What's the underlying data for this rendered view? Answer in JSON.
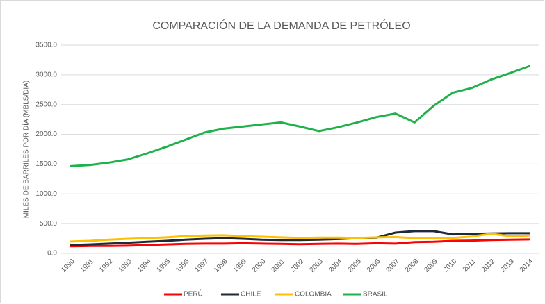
{
  "chart_data": {
    "type": "line",
    "title": "COMPARACIÓN DE LA DEMANDA DE PETRÓLEO",
    "y_label": "MILES DE BARRILES POR DÍA (MBLS/DIA)",
    "categories": [
      "1990",
      "1991",
      "1992",
      "1993",
      "1994",
      "1995",
      "1996",
      "1997",
      "1998",
      "1999",
      "2000",
      "2001",
      "2002",
      "2003",
      "2004",
      "2005",
      "2006",
      "2007",
      "2008",
      "2009",
      "2010",
      "2011",
      "2012",
      "2013",
      "2014"
    ],
    "series": [
      {
        "name": "PERÚ",
        "color": "#ff0000",
        "values": [
          120,
          125,
          125,
          130,
          140,
          150,
          160,
          165,
          165,
          170,
          165,
          160,
          155,
          160,
          165,
          160,
          170,
          165,
          190,
          195,
          210,
          215,
          225,
          230,
          235
        ]
      },
      {
        "name": "CHILE",
        "color": "#1f2a38",
        "values": [
          140,
          150,
          165,
          180,
          195,
          210,
          230,
          245,
          255,
          245,
          230,
          225,
          225,
          230,
          240,
          255,
          265,
          350,
          375,
          375,
          320,
          330,
          335,
          340,
          340
        ]
      },
      {
        "name": "COLOMBIA",
        "color": "#ffc000",
        "values": [
          200,
          210,
          230,
          245,
          255,
          270,
          290,
          300,
          305,
          290,
          280,
          270,
          260,
          265,
          265,
          260,
          270,
          275,
          255,
          250,
          260,
          285,
          330,
          290,
          300
        ]
      },
      {
        "name": "BRASIL",
        "color": "#1fb14c",
        "values": [
          1465,
          1485,
          1525,
          1580,
          1680,
          1790,
          1910,
          2030,
          2095,
          2130,
          2165,
          2200,
          2130,
          2055,
          2120,
          2200,
          2290,
          2350,
          2200,
          2480,
          2700,
          2780,
          2920,
          3030,
          3145
        ]
      }
    ],
    "ylim": [
      0,
      3500
    ],
    "yticks": [
      {
        "value": 0,
        "label": "0.0"
      },
      {
        "value": 500,
        "label": "500.0"
      },
      {
        "value": 1000,
        "label": "1000.0"
      },
      {
        "value": 1500,
        "label": "1500.0"
      },
      {
        "value": 2000,
        "label": "2000.0"
      },
      {
        "value": 2500,
        "label": "2500.0"
      },
      {
        "value": 3000,
        "label": "3000.0"
      },
      {
        "value": 3500,
        "label": "3500.0"
      }
    ],
    "grid": true,
    "legend": "bottom"
  }
}
